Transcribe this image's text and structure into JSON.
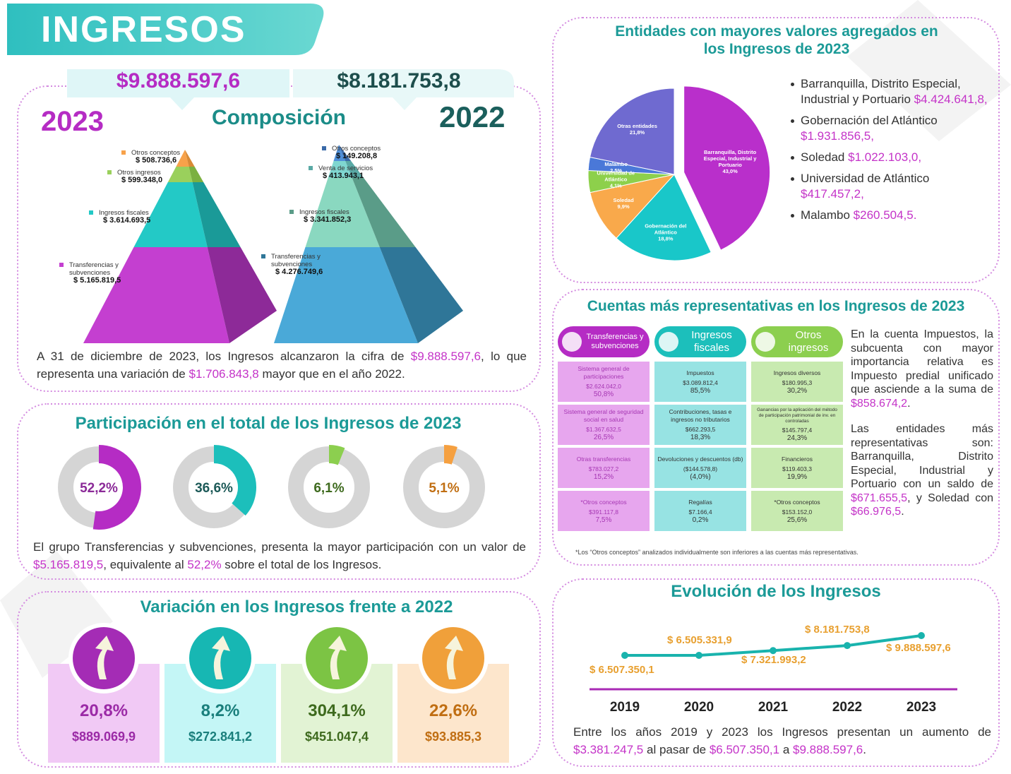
{
  "header": {
    "title": "INGRESOS"
  },
  "composition": {
    "total_2023": "$9.888.597,6",
    "total_2022": "$8.181.753,8",
    "year_2023": "2023",
    "year_2022": "2022",
    "title": "Composición",
    "pyramid_2023": [
      {
        "name": "Otros conceptos",
        "amount": "$ 508.736,6"
      },
      {
        "name": "Otros ingresos",
        "amount": "$ 599.348,0"
      },
      {
        "name": "Ingresos fiscales",
        "amount": "$ 3.614.693,5"
      },
      {
        "name": "Transferencias y subvenciones",
        "amount": "$ 5.165.819,5"
      }
    ],
    "pyramid_2022": [
      {
        "name": "Otros conceptos",
        "amount": "$ 149.208,8"
      },
      {
        "name": "Venta de servicios",
        "amount": "$ 413.943,1"
      },
      {
        "name": "Ingresos fiscales",
        "amount": "$ 3.341.852,3"
      },
      {
        "name": "Transferencias y subvenciones",
        "amount": "$ 4.276.749,6"
      }
    ],
    "note": [
      "A 31 de diciembre de 2023, los Ingresos alcanzaron la cifra de ",
      "$9.888.597,6",
      ", lo que representa una variación de ",
      "$1.706.843,8",
      " mayor que en el año 2022."
    ]
  },
  "participation": {
    "note": [
      "El grupo Transferencias y subvenciones, presenta la mayor participación con un valor de ",
      "$5.165.819,5",
      ", equivalente al ",
      "52,2%",
      " sobre el total de los Ingresos."
    ]
  },
  "variation": {
    "title": "Variación en los Ingresos frente a 2022",
    "cards": [
      {
        "percent": "20,8%",
        "amount": "$889.069,9"
      },
      {
        "percent": "8,2%",
        "amount": "$272.841,2"
      },
      {
        "percent": "304,1%",
        "amount": "$451.047,4"
      },
      {
        "percent": "22,6%",
        "amount": "$93.885,3"
      }
    ]
  },
  "entities_list": [
    {
      "name": "Barranquilla, Distrito Especial, Industrial y Portuario",
      "amount": "$4.424.641,8,"
    },
    {
      "name": "Gobernación del Atlántico",
      "amount": "$1.931.856,5,"
    },
    {
      "name": "Soledad",
      "amount": "$1.022.103,0,"
    },
    {
      "name": "Universidad de Atlántico",
      "amount": "$417.457,2,"
    },
    {
      "name": "Malambo",
      "amount": "$260.504,5."
    }
  ],
  "accounts": {
    "title": "Cuentas más representativas en los Ingresos de 2023",
    "columns": [
      {
        "header": "Transferencias y subvenciones",
        "items": [
          {
            "name": "Sistema general de participaciones",
            "amount": "$2.624.042,0",
            "percent": "50,8%"
          },
          {
            "name": "Sistema general de seguridad social en salud",
            "amount": "$1.367.632,5",
            "percent": "26,5%"
          },
          {
            "name": "Otras transferencias",
            "amount": "$783.027,2",
            "percent": "15,2%"
          },
          {
            "name": "*Otros conceptos",
            "amount": "$391.117,8",
            "percent": "7,5%"
          }
        ]
      },
      {
        "header": "Ingresos fiscales",
        "items": [
          {
            "name": "Impuestos",
            "amount": "$3.089.812,4",
            "percent": "85,5%"
          },
          {
            "name": "Contribuciones, tasas e ingresos no tributarios",
            "amount": "$662.293,5",
            "percent": "18,3%"
          },
          {
            "name": "Devoluciones y descuentos (db)",
            "amount": "($144.578,8)",
            "percent": "(4,0%)"
          },
          {
            "name": "Regalías",
            "amount": "$7.166,4",
            "percent": "0,2%"
          }
        ]
      },
      {
        "header": "Otros ingresos",
        "items": [
          {
            "name": "Ingresos diversos",
            "amount": "$180.995,3",
            "percent": "30,2%"
          },
          {
            "name": "Ganancias por la aplicación del método de participación patrimonial de inv. en controladas",
            "amount": "$145.797,4",
            "percent": "24,3%"
          },
          {
            "name": "Financieros",
            "amount": "$119.403,3",
            "percent": "19,9%"
          },
          {
            "name": "*Otros conceptos",
            "amount": "$153.152,0",
            "percent": "25,6%"
          }
        ]
      }
    ],
    "text": [
      [
        "En la cuenta Impuestos, la subcuenta con mayor importancia relativa es Impuesto predial unificado que asciende a la suma de ",
        "$858.674,2",
        "."
      ],
      [
        "Las entidades más representativas son: Barranquilla, Distrito Especial, Industrial y Portuario con un saldo de ",
        "$671.655,5",
        ", y Soledad con ",
        "$66.976,5",
        "."
      ]
    ],
    "footnote": "*Los “Otros conceptos” analizados individualmente son inferiores a las cuentas más representativas."
  },
  "evolution_note": [
    "Entre los años 2019 y 2023 los Ingresos presentan un aumento de ",
    "$3.381.247,5",
    " al pasar de ",
    "$6.507.350,1",
    " a ",
    "$9.888.597,6",
    "."
  ],
  "chart_data": [
    {
      "type": "pie",
      "title": "Entidades con mayores valores agregados en los Ingresos de 2023",
      "categories": [
        "Barranquilla, Distrito Especial, Industrial y Portuario",
        "Gobernación del Atlántico",
        "Soledad",
        "Universidad de Atlántico",
        "Malambo",
        "Otras entidades"
      ],
      "values": [
        43.0,
        18.8,
        9.9,
        4.1,
        2.5,
        21.8
      ],
      "value_labels": [
        "43,0%",
        "18,8%",
        "9,9%",
        "4,1%",
        "2,5%",
        "21,8%"
      ],
      "colors": [
        "#b92fcb",
        "#19c7c9",
        "#f9a94b",
        "#8dd04b",
        "#4a78d8",
        "#6f6ad0"
      ]
    },
    {
      "type": "donut",
      "title": "Participación en el total de los Ingresos de 2023",
      "values": [
        52.2,
        36.6,
        6.1,
        5.1
      ],
      "value_labels": [
        "52,2%",
        "36,6%",
        "6,1%",
        "5,1%"
      ],
      "colors": [
        "#b52cc4",
        "#1cbfbb",
        "#8ccf4f",
        "#f5a040"
      ]
    },
    {
      "type": "line",
      "title": "Evolución de los Ingresos",
      "categories": [
        "2019",
        "2020",
        "2021",
        "2022",
        "2023"
      ],
      "values": [
        6507350.1,
        6505331.9,
        7321993.2,
        8181753.8,
        9888597.6
      ],
      "value_labels": [
        "$ 6.507.350,1",
        "$ 6.505.331,9",
        "$ 7.321.993,2",
        "$ 8.181.753,8",
        "$ 9.888.597,6"
      ],
      "color": "#19b3ad"
    }
  ]
}
